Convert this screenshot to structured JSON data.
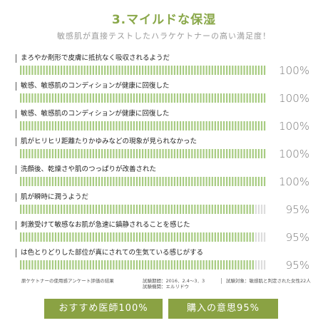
{
  "title": "3.マイルドな保湿",
  "subtitle": "敏感肌が直接テストしたハラケケトナーの高い満足度！",
  "chart_data": {
    "type": "bar",
    "unit": "%",
    "categories": [
      "まろやか剤形で皮膚に抵抗なく吸収されるようだ",
      "敏感、敏感肌のコンディションが健康に回復した",
      "敏感、敏感肌のコンディションが健康に回復した",
      "肌がヒリヒリ距離たりかゆみなどの現象が見られなかった",
      "洗顔後、乾燥さや肌のつっぱりが改善された",
      "肌が瞬時に潤うようだ",
      "刺激受けて敏感なお肌が急速に鎮静されることを感じた",
      "は色とりどりした部位が真にされての生気ている感じがする"
    ],
    "values": [
      100,
      100,
      100,
      100,
      100,
      95,
      95,
      95
    ],
    "labels": [
      "100%",
      "100%",
      "100%",
      "100%",
      "100%",
      "95%",
      "95%",
      "95%"
    ],
    "ylim": [
      0,
      100
    ],
    "colors": {
      "filled": "#a8cc82",
      "empty": "#dddddd"
    }
  },
  "footer": {
    "survey": "原ケケトナーの使用感アンケート評価の結果",
    "period_line": "試験期間：2016．2.4～3．3",
    "org_line": "試験機関：エルリドウ",
    "subjects": "試験対象：敏感肌と判定された女性22人"
  },
  "badges": {
    "recommend": "おすすめ医師100%",
    "purchase": "購入の意思95%"
  }
}
